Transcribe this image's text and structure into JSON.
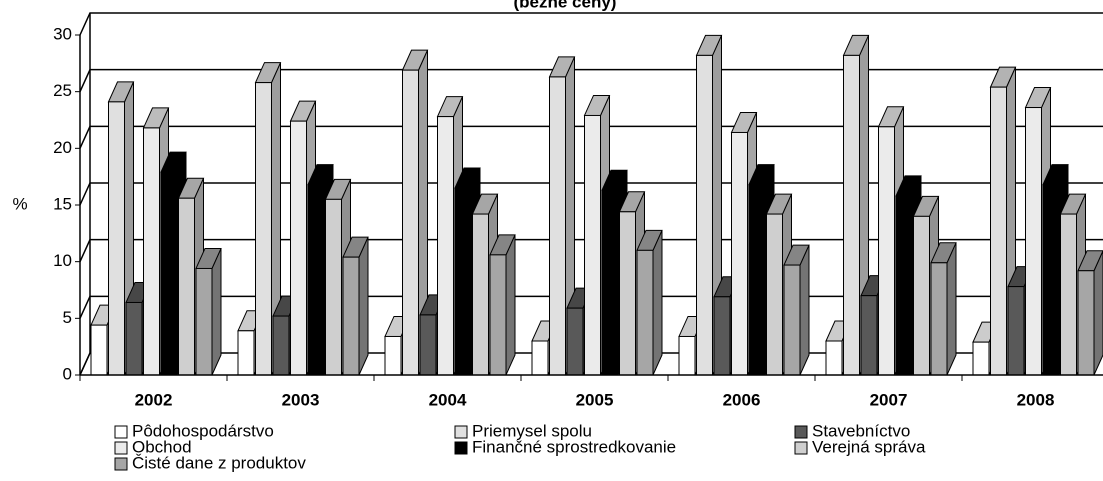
{
  "chart_data": {
    "type": "bar3d",
    "title": "(bežné ceny)",
    "y_label": "%",
    "categories": [
      "2002",
      "2003",
      "2004",
      "2005",
      "2006",
      "2007",
      "2008"
    ],
    "series": [
      {
        "name": "Pôdohospodárstvo",
        "color": "#ffffff",
        "values": [
          4.4,
          3.9,
          3.4,
          3.0,
          3.4,
          3.0,
          2.9
        ]
      },
      {
        "name": "Priemysel spolu",
        "color": "#e0e0e0",
        "values": [
          24.1,
          25.8,
          26.9,
          26.3,
          28.2,
          28.2,
          25.4
        ]
      },
      {
        "name": "Stavebníctvo",
        "color": "#595959",
        "values": [
          6.4,
          5.2,
          5.3,
          5.9,
          6.9,
          7.0,
          7.8
        ]
      },
      {
        "name": "Obchod",
        "color": "#ebebeb",
        "values": [
          21.8,
          22.4,
          22.8,
          22.9,
          21.4,
          21.9,
          23.6
        ]
      },
      {
        "name": "Finančné sprostredkovanie",
        "color": "#000000",
        "values": [
          17.9,
          16.8,
          16.5,
          16.3,
          16.8,
          15.8,
          16.8
        ]
      },
      {
        "name": "Verejná správa",
        "color": "#cfcfcf",
        "values": [
          15.6,
          15.5,
          14.2,
          14.4,
          14.2,
          14.0,
          14.2
        ]
      },
      {
        "name": "Čisté dane z produktov",
        "color": "#a6a6a6",
        "values": [
          9.4,
          10.4,
          10.6,
          11.0,
          9.7,
          9.9,
          9.2
        ]
      }
    ],
    "ylim": [
      0,
      30
    ],
    "yticks": [
      0,
      5,
      10,
      15,
      20,
      25,
      30
    ],
    "grid": true,
    "legend": "bottom"
  }
}
